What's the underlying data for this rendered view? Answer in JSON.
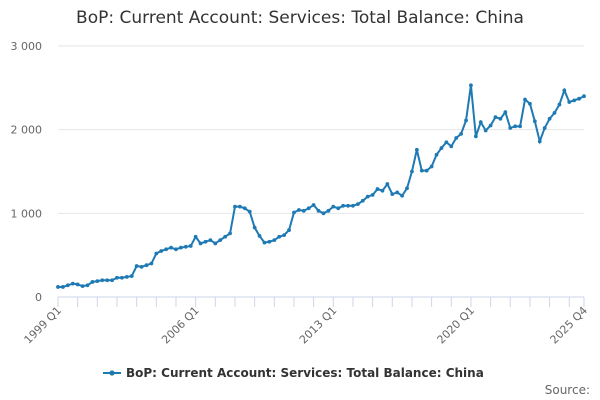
{
  "chart_data": {
    "type": "line",
    "title": "BoP: Current Account: Services: Total Balance: China",
    "xlabel": "",
    "ylabel": "",
    "ylim": [
      0,
      3000
    ],
    "yticks": [
      0,
      1000,
      2000,
      3000
    ],
    "ytick_labels": [
      "0",
      "1 000",
      "2 000",
      "3 000"
    ],
    "x_tick_labels": [
      "1999 Q1",
      "2006 Q1",
      "2013 Q1",
      "2020 Q1",
      "2025 Q4"
    ],
    "grid": true,
    "legend_position": "bottom-center",
    "series": [
      {
        "name": "BoP: Current Account: Services: Total Balance: China",
        "color": "#1f7ab4",
        "values": [
          120,
          120,
          140,
          160,
          150,
          130,
          140,
          180,
          190,
          200,
          200,
          200,
          230,
          230,
          240,
          250,
          370,
          360,
          380,
          400,
          520,
          550,
          570,
          590,
          570,
          590,
          600,
          610,
          720,
          640,
          660,
          680,
          640,
          680,
          720,
          760,
          1080,
          1080,
          1060,
          1020,
          830,
          730,
          650,
          660,
          680,
          720,
          740,
          800,
          1010,
          1040,
          1030,
          1060,
          1100,
          1030,
          1000,
          1030,
          1080,
          1060,
          1090,
          1090,
          1090,
          1110,
          1150,
          1200,
          1220,
          1290,
          1270,
          1350,
          1230,
          1250,
          1210,
          1300,
          1500,
          1760,
          1510,
          1510,
          1560,
          1700,
          1780,
          1850,
          1800,
          1900,
          1950,
          2110,
          2530,
          1920,
          2090,
          1990,
          2050,
          2150,
          2130,
          2210,
          2020,
          2040,
          2040,
          2360,
          2310,
          2100,
          1860,
          2020,
          2130,
          2200,
          2300,
          2470,
          2330,
          2350,
          2370,
          2400
        ]
      }
    ]
  },
  "legend": {
    "label": "BoP: Current Account: Services: Total Balance: China"
  },
  "source": {
    "label": "Source:"
  }
}
